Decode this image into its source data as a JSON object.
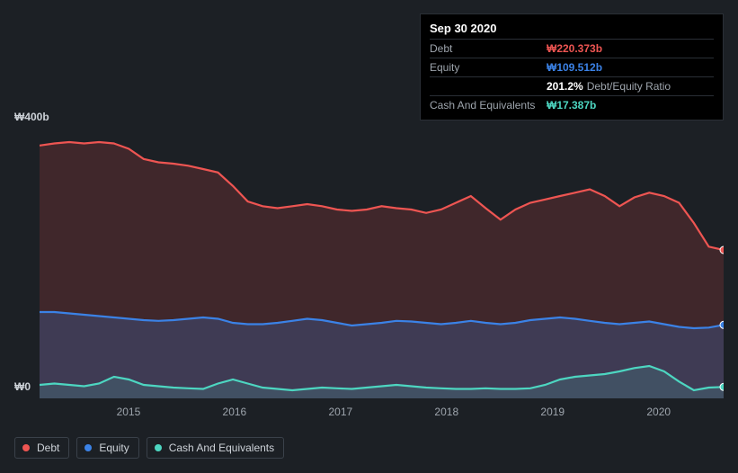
{
  "chart": {
    "type": "area",
    "background_color": "#1c2025",
    "plot_background_color": "#1c2025",
    "y_axis": {
      "max_label": "₩400b",
      "min_label": "₩0",
      "ylim": [
        0,
        400
      ],
      "label_fontsize": 12,
      "label_color": "#cdd2d8"
    },
    "x_axis": {
      "labels": [
        "2015",
        "2016",
        "2017",
        "2018",
        "2019",
        "2020"
      ],
      "positions_pct": [
        13,
        28.5,
        44,
        59.5,
        75,
        90.5
      ],
      "label_fontsize": 12,
      "label_color": "#9ea5ad"
    },
    "series": {
      "debt": {
        "label": "Debt",
        "color": "#ee5552",
        "fill_opacity": 0.18,
        "values": [
          375,
          378,
          380,
          378,
          380,
          378,
          370,
          355,
          350,
          348,
          345,
          340,
          335,
          315,
          292,
          285,
          282,
          285,
          288,
          285,
          280,
          278,
          280,
          285,
          282,
          280,
          275,
          280,
          290,
          300,
          282,
          265,
          280,
          290,
          295,
          300,
          305,
          310,
          300,
          285,
          298,
          305,
          300,
          290,
          260,
          225,
          220
        ],
        "end_value": 220.373
      },
      "equity": {
        "label": "Equity",
        "color": "#3b82e6",
        "fill_opacity": 0.22,
        "values": [
          128,
          128,
          126,
          124,
          122,
          120,
          118,
          116,
          115,
          116,
          118,
          120,
          118,
          112,
          110,
          110,
          112,
          115,
          118,
          116,
          112,
          108,
          110,
          112,
          115,
          114,
          112,
          110,
          112,
          115,
          112,
          110,
          112,
          116,
          118,
          120,
          118,
          115,
          112,
          110,
          112,
          114,
          110,
          106,
          104,
          105,
          109
        ],
        "end_value": 109.512
      },
      "cash": {
        "label": "Cash And Equivalents",
        "color": "#4dd6c1",
        "fill_opacity": 0.14,
        "values": [
          20,
          22,
          20,
          18,
          22,
          32,
          28,
          20,
          18,
          16,
          15,
          14,
          22,
          28,
          22,
          16,
          14,
          12,
          14,
          16,
          15,
          14,
          16,
          18,
          20,
          18,
          16,
          15,
          14,
          14,
          15,
          14,
          14,
          15,
          20,
          28,
          32,
          34,
          36,
          40,
          45,
          48,
          40,
          25,
          12,
          16,
          17
        ],
        "end_value": 17.387
      }
    },
    "n_points": 47,
    "line_width": 2.2,
    "endpoint_radius": 4
  },
  "tooltip": {
    "title": "Sep 30 2020",
    "rows": [
      {
        "label": "Debt",
        "value": "₩220.373b",
        "color": "#ee5552"
      },
      {
        "label": "Equity",
        "value": "₩109.512b",
        "color": "#3b82e6"
      },
      {
        "label": "",
        "value": "201.2%",
        "suffix": "Debt/Equity Ratio",
        "color": "#ffffff"
      },
      {
        "label": "Cash And Equivalents",
        "value": "₩17.387b",
        "color": "#4dd6c1"
      }
    ]
  },
  "legend": {
    "items": [
      {
        "label": "Debt",
        "color": "#ee5552"
      },
      {
        "label": "Equity",
        "color": "#3b82e6"
      },
      {
        "label": "Cash And Equivalents",
        "color": "#4dd6c1"
      }
    ],
    "fontsize": 12,
    "border_color": "#3a414a"
  }
}
